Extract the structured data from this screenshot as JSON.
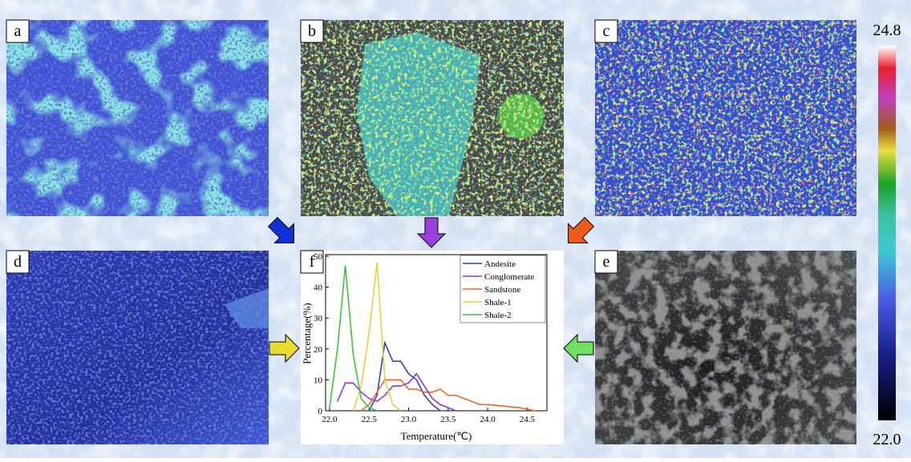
{
  "panels": [
    "a",
    "b",
    "c",
    "d",
    "e",
    "f"
  ],
  "colorbar": {
    "ticks": [
      {
        "value": 22.0,
        "label": "22.0"
      },
      24.8
    ]
  },
  "chart_data": {
    "type": "line",
    "xlabel": "Temperature(℃)",
    "ylabel": "Percentage(%)",
    "xlim": [
      21.95,
      24.75
    ],
    "ylim": [
      0,
      50
    ],
    "xticks": [
      {
        "value": 22.0,
        "label": "22.0"
      },
      22.5,
      {
        "value": 23.0,
        "label": "23.0"
      },
      23.5,
      {
        "value": 24.0,
        "label": "24.0"
      },
      24.5
    ],
    "yticks": [
      0,
      10,
      20,
      30,
      40,
      50
    ],
    "legend": "upper right",
    "series": [
      {
        "name": "Andesite",
        "color": "#2a44b8",
        "x": [
          22.5,
          22.6,
          22.7,
          22.8,
          22.9,
          23.0,
          23.1,
          23.2,
          23.3,
          23.4
        ],
        "values": [
          0,
          5,
          22,
          16,
          16,
          12,
          10,
          5,
          2,
          0
        ]
      },
      {
        "name": "Conglomerate",
        "color": "#9a33d6",
        "x": [
          22.1,
          22.2,
          22.3,
          22.4,
          22.5,
          22.6,
          22.7,
          22.8,
          22.9,
          23.0,
          23.1,
          23.2,
          23.3,
          23.4,
          23.5,
          23.6
        ],
        "values": [
          3,
          9,
          9,
          6,
          4,
          3,
          5,
          8,
          8,
          9,
          12,
          8,
          4,
          2,
          1,
          0
        ]
      },
      {
        "name": "Sandstone",
        "color": "#ec6424",
        "x": [
          22.4,
          22.5,
          22.6,
          22.7,
          22.8,
          22.9,
          23.0,
          23.1,
          23.2,
          23.3,
          23.4,
          23.5,
          23.6,
          23.7,
          23.8,
          23.9,
          24.0,
          24.2,
          24.4,
          24.6
        ],
        "values": [
          0,
          2,
          6,
          10,
          10,
          10,
          7,
          7,
          6,
          6,
          7,
          5,
          5,
          4,
          3,
          2,
          2,
          1.5,
          1,
          0
        ]
      },
      {
        "name": "Shale-1",
        "color": "#e6d040",
        "x": [
          22.3,
          22.4,
          22.5,
          22.6,
          22.7,
          22.8,
          22.9
        ],
        "values": [
          0,
          8,
          25,
          48,
          10,
          2,
          0
        ]
      },
      {
        "name": "Shale-2",
        "color": "#3fc23f",
        "x": [
          22.0,
          22.1,
          22.2,
          22.3,
          22.4,
          22.5,
          22.6
        ],
        "values": [
          1,
          20,
          47,
          18,
          4,
          1,
          0
        ]
      }
    ]
  }
}
